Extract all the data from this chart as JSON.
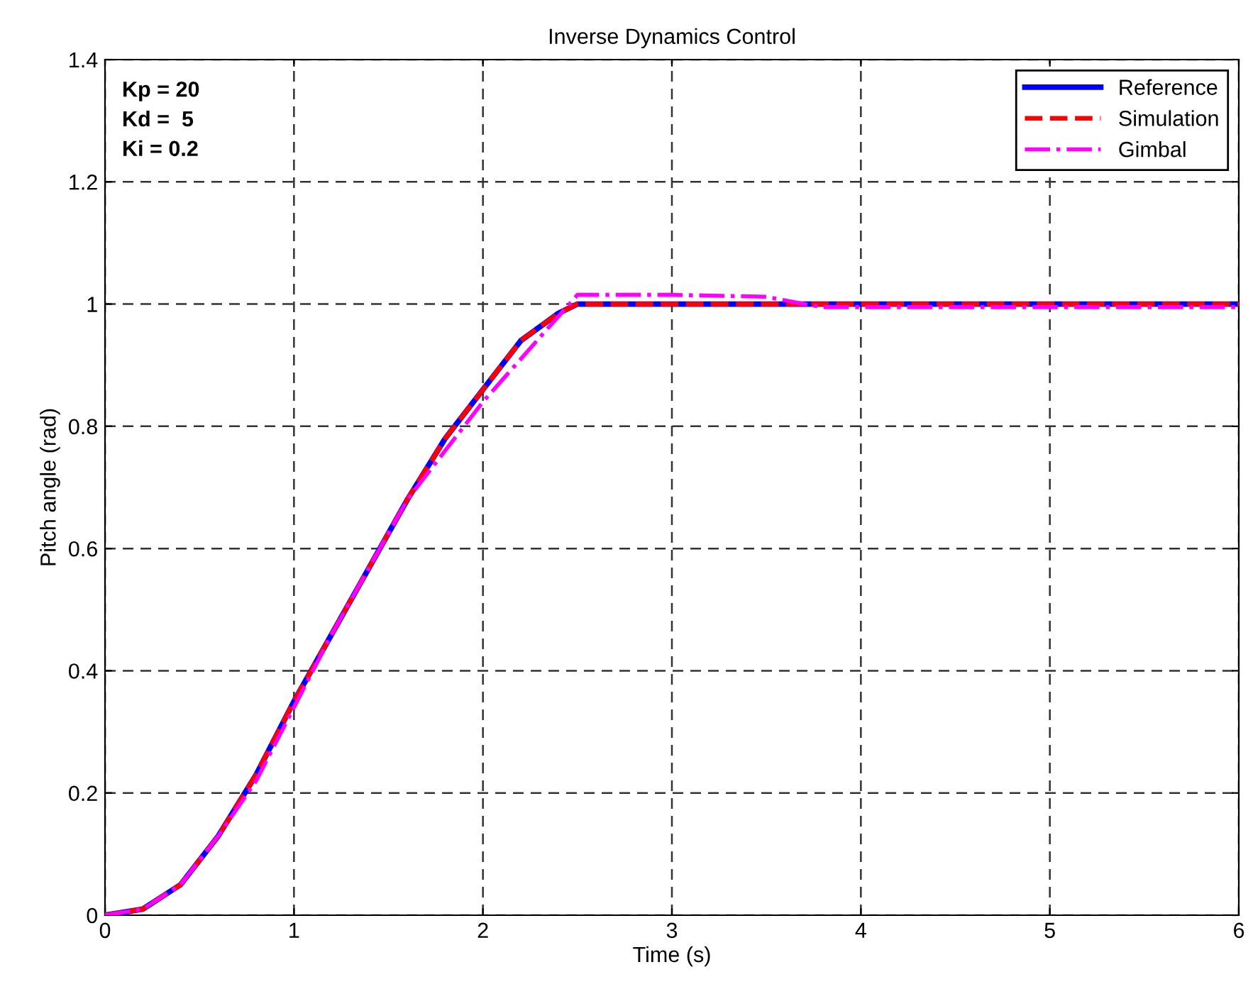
{
  "chart_data": {
    "type": "line",
    "title": "Inverse Dynamics Control",
    "xlabel": "Time (s)",
    "ylabel": "Pitch angle (rad)",
    "annotations": [
      "Kp = 20\nKd =  5\nKi = 0.2"
    ],
    "xlim": [
      0,
      6
    ],
    "ylim": [
      0,
      1.4
    ],
    "xticks": [
      0,
      1,
      2,
      3,
      4,
      5,
      6
    ],
    "yticks": [
      0,
      0.2,
      0.4,
      0.6,
      0.8,
      1,
      1.2,
      1.4
    ],
    "grid": true,
    "legend": "top right",
    "series": [
      {
        "name": "Reference",
        "color": "#0000ff",
        "line_style": "solid",
        "x": [
          0,
          0.2,
          0.4,
          0.6,
          0.8,
          1.0,
          1.2,
          1.4,
          1.6,
          1.8,
          2.0,
          2.2,
          2.4,
          2.5,
          3,
          4,
          5,
          6
        ],
        "values": [
          0,
          0.01,
          0.05,
          0.13,
          0.23,
          0.35,
          0.46,
          0.57,
          0.68,
          0.78,
          0.86,
          0.94,
          0.985,
          1.0,
          1.0,
          1.0,
          1.0,
          1.0
        ]
      },
      {
        "name": "Simulation",
        "color": "#ff0000",
        "line_style": "dashed",
        "x": [
          0,
          0.2,
          0.4,
          0.6,
          0.8,
          1.0,
          1.2,
          1.4,
          1.6,
          1.8,
          2.0,
          2.2,
          2.4,
          2.5,
          3,
          4,
          5,
          6
        ],
        "values": [
          0,
          0.01,
          0.05,
          0.13,
          0.23,
          0.35,
          0.46,
          0.57,
          0.68,
          0.78,
          0.86,
          0.94,
          0.985,
          1.0,
          1.0,
          1.0,
          1.0,
          1.0
        ]
      },
      {
        "name": "Gimbal",
        "color": "#ff00ff",
        "line_style": "dashdot",
        "x": [
          0,
          0.2,
          0.4,
          0.6,
          0.8,
          1.0,
          1.2,
          1.4,
          1.6,
          1.8,
          2.0,
          2.2,
          2.4,
          2.5,
          3,
          3.5,
          3.7,
          3.8,
          4,
          5,
          6
        ],
        "values": [
          0,
          0.01,
          0.05,
          0.13,
          0.22,
          0.34,
          0.46,
          0.57,
          0.68,
          0.76,
          0.84,
          0.91,
          0.98,
          1.015,
          1.015,
          1.012,
          1.0,
          0.995,
          0.995,
          0.995,
          0.995
        ]
      }
    ]
  }
}
